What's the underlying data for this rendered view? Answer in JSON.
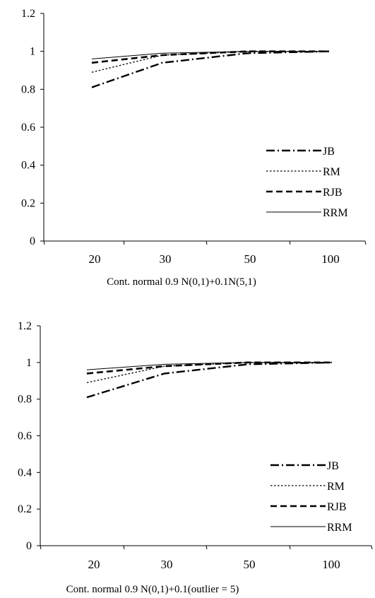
{
  "chart_data": [
    {
      "type": "line",
      "categories": [
        "20",
        "30",
        "50",
        "100"
      ],
      "xlabel": "Cont. normal 0.9 N(0,1)+0.1N(5,1)",
      "ylabel": "",
      "ylim": [
        0,
        1.2
      ],
      "yticks": [
        "0",
        "0.2",
        "0.4",
        "0.6",
        "0.8",
        "1",
        "1.2"
      ],
      "grid": false,
      "legend": "right",
      "series": [
        {
          "name": "JB",
          "style": "dash-dot",
          "values": [
            0.81,
            0.94,
            0.99,
            1.0
          ]
        },
        {
          "name": "RM",
          "style": "dotted",
          "values": [
            0.89,
            0.98,
            1.0,
            1.0
          ]
        },
        {
          "name": "RJB",
          "style": "dashed",
          "values": [
            0.94,
            0.98,
            1.0,
            1.0
          ]
        },
        {
          "name": "RRM",
          "style": "solid",
          "values": [
            0.96,
            0.99,
            1.0,
            1.0
          ]
        }
      ]
    },
    {
      "type": "line",
      "categories": [
        "20",
        "30",
        "50",
        "100"
      ],
      "xlabel": "Cont. normal 0.9 N(0,1)+0.1(outlier = 5)",
      "ylabel": "",
      "ylim": [
        0,
        1.2
      ],
      "yticks": [
        "0",
        "0.2",
        "0.4",
        "0.6",
        "0.8",
        "1",
        "1.2"
      ],
      "grid": false,
      "legend": "right",
      "series": [
        {
          "name": "JB",
          "style": "dash-dot",
          "values": [
            0.81,
            0.94,
            0.99,
            1.0
          ]
        },
        {
          "name": "RM",
          "style": "dotted",
          "values": [
            0.89,
            0.98,
            1.0,
            1.0
          ]
        },
        {
          "name": "RJB",
          "style": "dashed",
          "values": [
            0.94,
            0.98,
            1.0,
            1.0
          ]
        },
        {
          "name": "RRM",
          "style": "solid",
          "values": [
            0.96,
            0.99,
            1.0,
            1.0
          ]
        }
      ]
    }
  ]
}
